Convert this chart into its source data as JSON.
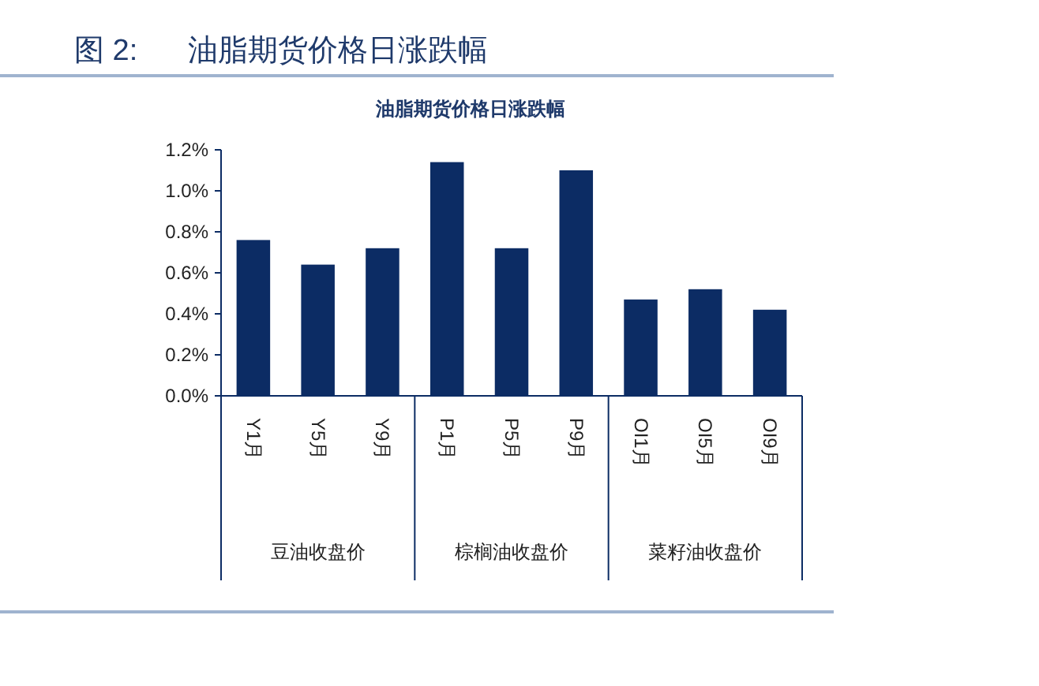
{
  "chart_data": {
    "type": "bar",
    "title": "图 2:      油脂期货价格日涨跌幅",
    "subtitle": "油脂期货价格日涨跌幅",
    "categories": [
      "Y1月",
      "Y5月",
      "Y9月",
      "P1月",
      "P5月",
      "P9月",
      "OI1月",
      "OI5月",
      "OI9月"
    ],
    "values": [
      0.76,
      0.64,
      0.72,
      1.14,
      0.72,
      1.1,
      0.47,
      0.52,
      0.42
    ],
    "color": "#0c2c64",
    "ylim": [
      0,
      1.2
    ],
    "yticks": [
      {
        "value": 0,
        "label": "0.0%"
      },
      {
        "value": 0.2,
        "label": "0.2%"
      },
      {
        "value": 0.4,
        "label": "0.4%"
      },
      {
        "value": 0.6,
        "label": "0.6%"
      },
      {
        "value": 0.8,
        "label": "0.8%"
      },
      {
        "value": 1.0,
        "label": "1.0%"
      },
      {
        "value": 1.2,
        "label": "1.2%"
      }
    ],
    "grid": false,
    "annotations": [
      "豆油收盘价",
      "棕榈油收盘价",
      "菜籽油收盘价"
    ]
  }
}
